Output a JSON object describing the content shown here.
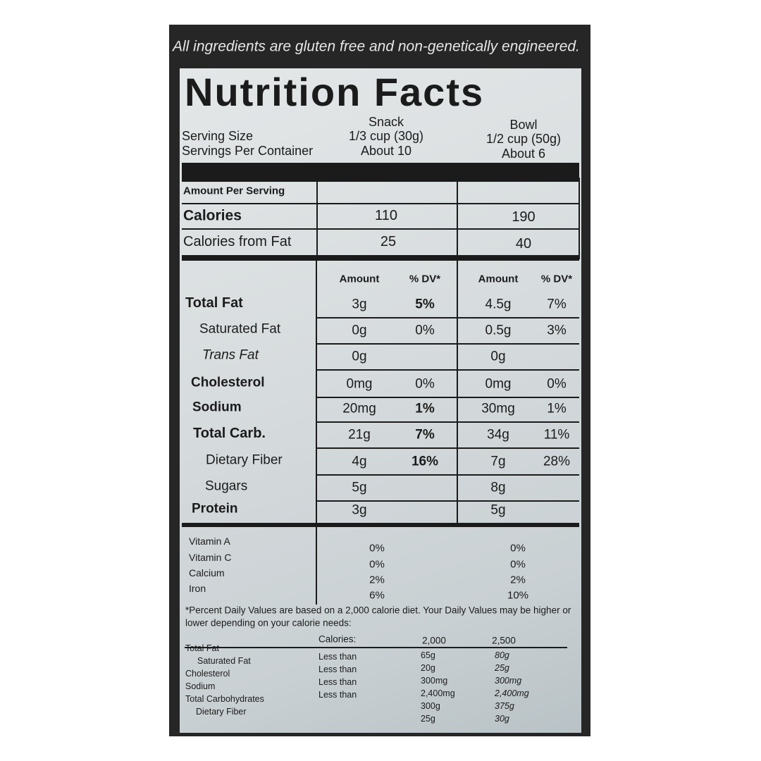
{
  "banner": "All ingredients are gluten free and non-genetically engineered.",
  "title": "Nutrition Facts",
  "serving": {
    "labels": [
      "Serving Size",
      "Servings Per Container"
    ],
    "columns": [
      {
        "name": "Snack",
        "size": "1/3 cup (30g)",
        "servings": "About 10"
      },
      {
        "name": "Bowl",
        "size": "1/2 cup (50g)",
        "servings": "About 6"
      }
    ]
  },
  "amount_header": "Amount Per Serving",
  "calories": {
    "label": "Calories",
    "values": [
      "110",
      "190"
    ]
  },
  "calories_from_fat": {
    "label": "Calories from Fat",
    "values": [
      "25",
      "40"
    ]
  },
  "nutrient_header": [
    "Amount",
    "% DV*",
    "Amount",
    "% DV*"
  ],
  "nutrients": [
    {
      "label": "Total Fat",
      "cells": [
        "3g",
        "5%",
        "4.5g",
        "7%"
      ]
    },
    {
      "label": "Saturated Fat",
      "cells": [
        "0g",
        "0%",
        "0.5g",
        "3%"
      ]
    },
    {
      "label": "Trans Fat",
      "cells": [
        "0g",
        null,
        "0g",
        null
      ]
    },
    {
      "label": "Cholesterol",
      "cells": [
        "0mg",
        "0%",
        "0mg",
        "0%"
      ]
    },
    {
      "label": "Sodium",
      "cells": [
        "20mg",
        "1%",
        "30mg",
        "1%"
      ]
    },
    {
      "label": "Total Carb.",
      "cells": [
        "21g",
        "7%",
        "34g",
        "11%"
      ]
    },
    {
      "label": "Dietary Fiber",
      "cells": [
        "4g",
        "16%",
        "7g",
        "28%"
      ]
    },
    {
      "label": "Sugars",
      "cells": [
        "5g",
        null,
        "8g",
        null
      ]
    },
    {
      "label": "Protein",
      "cells": [
        "3g",
        null,
        "5g",
        null
      ]
    }
  ],
  "vitamins": {
    "labels": [
      "Vitamin A",
      "Vitamin C",
      "Calcium",
      "Iron"
    ],
    "snack": [
      "0%",
      "0%",
      "2%",
      "6%"
    ],
    "bowl": [
      "0%",
      "0%",
      "2%",
      "10%"
    ]
  },
  "footnote": [
    "*Percent Daily Values are based on a 2,000 calorie diet. Your Daily Values may be higher or",
    "lower depending on your calorie needs:"
  ],
  "dv_table": {
    "header": [
      "Calories:",
      "2,000",
      "2,500"
    ],
    "rows": [
      [
        "Total Fat",
        "Less than",
        "65g",
        "80g"
      ],
      [
        "Saturated Fat",
        "Less than",
        "20g",
        "25g"
      ],
      [
        "Cholesterol",
        "Less than",
        "300mg",
        "300mg"
      ],
      [
        "Sodium",
        "Less than",
        "2,400mg",
        "2,400mg"
      ],
      [
        "Total Carbohydrates",
        null,
        "300g",
        "375g"
      ],
      [
        "Dietary Fiber",
        null,
        "25g",
        "30g"
      ]
    ]
  }
}
